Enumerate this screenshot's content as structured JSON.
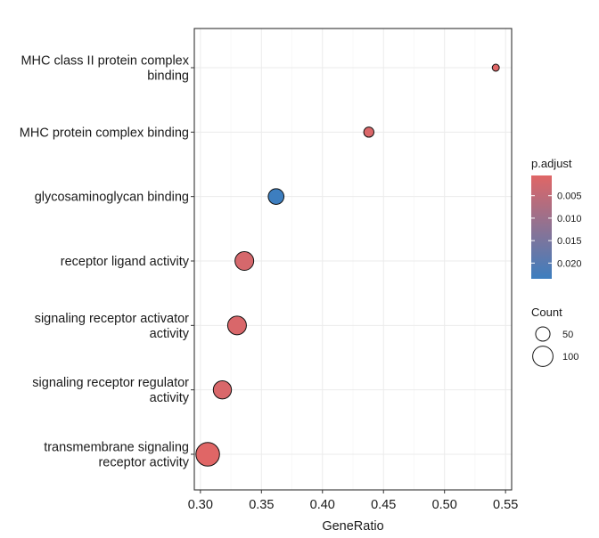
{
  "chart_data": {
    "type": "scatter",
    "xlabel": "GeneRatio",
    "ylabel": "",
    "xlim": [
      0.295,
      0.555
    ],
    "x_ticks": [
      0.3,
      0.35,
      0.4,
      0.45,
      0.5,
      0.55
    ],
    "x_tick_labels": [
      "0.30",
      "0.35",
      "0.40",
      "0.45",
      "0.50",
      "0.55"
    ],
    "grid": true,
    "categories": [
      [
        "MHC class II protein complex",
        "binding"
      ],
      [
        "MHC protein complex binding"
      ],
      [
        "glycosaminoglycan binding"
      ],
      [
        "receptor ligand activity"
      ],
      [
        "signaling receptor activator",
        "activity"
      ],
      [
        "signaling receptor regulator",
        "activity"
      ],
      [
        "transmembrane signaling",
        "receptor activity"
      ]
    ],
    "points": [
      {
        "x": 0.542,
        "count": 12,
        "p_adjust": 0.0005
      },
      {
        "x": 0.438,
        "count": 25,
        "p_adjust": 0.0012
      },
      {
        "x": 0.362,
        "count": 60,
        "p_adjust": 0.0235
      },
      {
        "x": 0.336,
        "count": 85,
        "p_adjust": 0.002
      },
      {
        "x": 0.33,
        "count": 85,
        "p_adjust": 0.0015
      },
      {
        "x": 0.318,
        "count": 80,
        "p_adjust": 0.0015
      },
      {
        "x": 0.306,
        "count": 135,
        "p_adjust": 0.0005
      }
    ],
    "color_legend": {
      "title": "p.adjust",
      "range": [
        0.0005,
        0.0235
      ],
      "ticks": [
        0.005,
        0.01,
        0.015,
        0.02
      ],
      "tick_labels": [
        "0.005",
        "0.010",
        "0.015",
        "0.020"
      ],
      "low_color": "#e06666",
      "high_color": "#3d7ebf"
    },
    "size_legend": {
      "title": "Count",
      "values": [
        50,
        100
      ],
      "labels": [
        "50",
        "100"
      ]
    },
    "legend_position": "right"
  }
}
